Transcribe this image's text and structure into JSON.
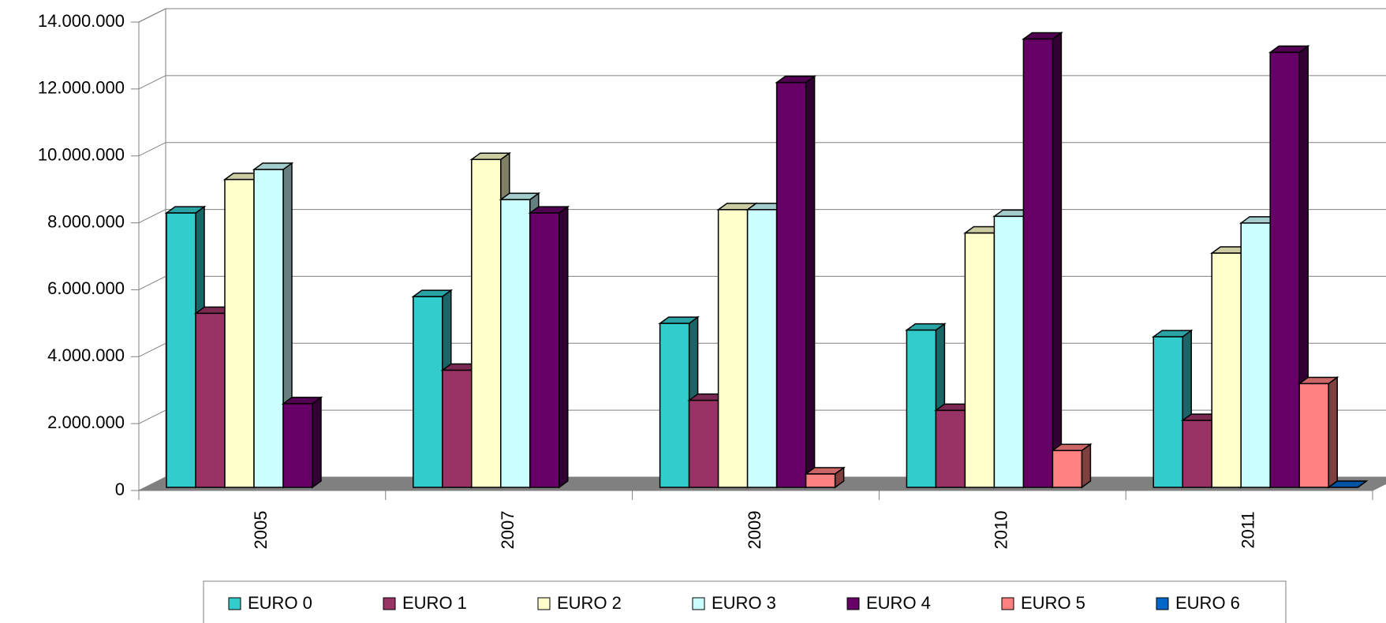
{
  "chart_data": {
    "type": "bar3d",
    "categories": [
      "2005",
      "2007",
      "2009",
      "2010",
      "2011"
    ],
    "series": [
      {
        "name": "EURO 0",
        "color": "#33cccc",
        "values": [
          8200000,
          5700000,
          4900000,
          4700000,
          4500000
        ]
      },
      {
        "name": "EURO 1",
        "color": "#993366",
        "values": [
          5200000,
          3500000,
          2600000,
          2300000,
          2000000
        ]
      },
      {
        "name": "EURO 2",
        "color": "#ffffcc",
        "values": [
          9200000,
          9800000,
          8300000,
          7600000,
          7000000
        ]
      },
      {
        "name": "EURO 3",
        "color": "#ccffff",
        "values": [
          9500000,
          8600000,
          8300000,
          8100000,
          7900000
        ]
      },
      {
        "name": "EURO 4",
        "color": "#660066",
        "values": [
          2500000,
          8200000,
          12100000,
          13400000,
          13000000
        ]
      },
      {
        "name": "EURO 5",
        "color": "#ff8080",
        "values": [
          null,
          null,
          400000,
          1100000,
          3100000
        ]
      },
      {
        "name": "EURO 6",
        "color": "#0066cc",
        "values": [
          null,
          null,
          null,
          null,
          0
        ]
      }
    ],
    "ylim": [
      0,
      14000000
    ],
    "yticks": [
      0,
      {
        "value": 2000000,
        "label": "2.000.000"
      },
      {
        "value": 4000000,
        "label": "4.000.000"
      },
      {
        "value": 6000000,
        "label": "6.000.000"
      },
      {
        "value": 8000000,
        "label": "8.000.000"
      },
      {
        "value": 10000000,
        "label": "10.000.000"
      },
      {
        "value": 12000000,
        "label": "12.000.000"
      },
      {
        "value": 14000000,
        "label": "14.000.000"
      }
    ],
    "grid": true
  }
}
